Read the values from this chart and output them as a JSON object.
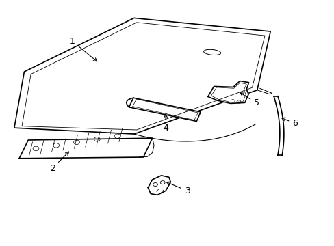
{
  "bg_color": "#ffffff",
  "line_color": "#000000",
  "line_width": 1.2,
  "fig_width": 4.89,
  "fig_height": 3.6,
  "dpi": 100
}
